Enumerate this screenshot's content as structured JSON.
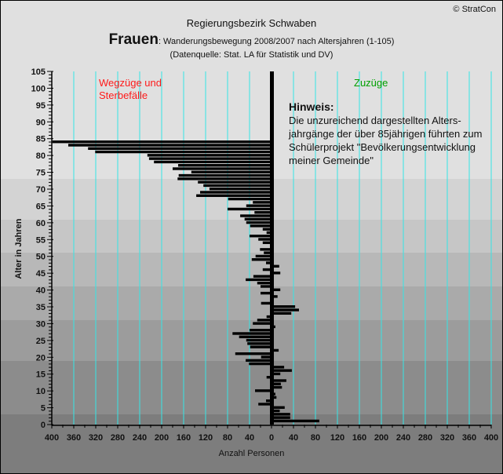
{
  "header": {
    "copyright": "© StratCon",
    "title": "Regierungsbezirk Schwaben",
    "subtitle_big": "Frauen",
    "subtitle_small": ": Wanderungsbewegung 2008/2007 nach Altersjahren (1-105)",
    "source": "(Datenquelle: Stat. LA für Statistik und DV)"
  },
  "annotations": {
    "left_label": "Wegzüge und Sterbefälle",
    "right_label": "Zuzüge",
    "note_title": "Hinweis:",
    "note_text": "Die unzureichend dargestellten Alters-jahrgänge der über 85jährigen führten zum Schülerprojekt \"Bevölkerungsentwicklung meiner Gemeinde\""
  },
  "colors": {
    "left_label": "#ff1a1a",
    "right_label": "#00a000",
    "bars": "#000000",
    "gridlines": "#33e6e6",
    "bands": [
      "#7d7d7d",
      "#8c8c8c",
      "#9c9c9c",
      "#aaaaaa",
      "#b8b8b8",
      "#c6c6c6",
      "#d3d3d3",
      "#e0e0e0"
    ]
  },
  "chart_data": {
    "type": "bar",
    "orientation": "horizontal",
    "title": "Regierungsbezirk Schwaben",
    "xlabel": "Anzahl Personen",
    "ylabel": "Alter in Jahren",
    "xlim": [
      -400,
      400
    ],
    "ylim": [
      0,
      105
    ],
    "x_ticks": [
      -400,
      -360,
      -320,
      -280,
      -240,
      -200,
      -160,
      -120,
      -80,
      -40,
      0,
      40,
      80,
      120,
      160,
      200,
      240,
      280,
      320,
      360,
      400
    ],
    "x_tick_labels": [
      "400",
      "360",
      "320",
      "280",
      "240",
      "200",
      "160",
      "120",
      "80",
      "40",
      "0",
      "40",
      "80",
      "120",
      "160",
      "200",
      "240",
      "280",
      "320",
      "360",
      "400"
    ],
    "y_ticks": [
      0,
      5,
      10,
      15,
      20,
      25,
      30,
      35,
      40,
      45,
      50,
      55,
      60,
      65,
      70,
      75,
      80,
      85,
      90,
      95,
      100,
      105
    ],
    "y_tick_labels": [
      "0",
      "5",
      "10",
      "15",
      "20",
      "25",
      "30",
      "35",
      "40",
      "45",
      "50",
      "55",
      "60",
      "65",
      "70",
      "75",
      "80",
      "85",
      "90",
      "95",
      "100",
      "105"
    ],
    "grid": "vertical",
    "age_bands": [
      0,
      3,
      19,
      31,
      41,
      51,
      61,
      73,
      105
    ],
    "ages": [
      1,
      2,
      3,
      4,
      5,
      6,
      7,
      8,
      9,
      10,
      11,
      12,
      13,
      14,
      15,
      16,
      17,
      18,
      19,
      20,
      21,
      22,
      23,
      24,
      25,
      26,
      27,
      28,
      29,
      30,
      31,
      32,
      33,
      34,
      35,
      36,
      37,
      38,
      39,
      40,
      41,
      42,
      43,
      44,
      45,
      46,
      47,
      48,
      49,
      50,
      51,
      52,
      53,
      54,
      55,
      56,
      57,
      58,
      59,
      60,
      61,
      62,
      63,
      64,
      65,
      66,
      67,
      68,
      69,
      70,
      71,
      72,
      73,
      74,
      75,
      76,
      77,
      78,
      79,
      80,
      81,
      82,
      83,
      84,
      85,
      86,
      87,
      88,
      89,
      90,
      91,
      92,
      93,
      94,
      95,
      96,
      97,
      98,
      99,
      100,
      101,
      102,
      103,
      104,
      105
    ],
    "values": [
      87,
      34,
      34,
      15,
      24,
      -24,
      -10,
      9,
      7,
      -30,
      19,
      17,
      27,
      -9,
      16,
      37,
      23,
      -41,
      -47,
      -19,
      -66,
      13,
      -39,
      -44,
      -46,
      -59,
      -71,
      -40,
      7,
      -34,
      -26,
      -9,
      36,
      50,
      43,
      -19,
      0,
      11,
      -20,
      16,
      -20,
      -26,
      -47,
      -33,
      16,
      -16,
      14,
      -10,
      -36,
      -29,
      -14,
      -21,
      0,
      -16,
      -24,
      -40,
      -9,
      -16,
      -39,
      -46,
      -49,
      -57,
      -31,
      -80,
      -46,
      -34,
      -79,
      -137,
      -130,
      -113,
      -124,
      -134,
      -171,
      -169,
      -146,
      -180,
      -170,
      -214,
      -223,
      -226,
      -321,
      -334,
      -370,
      -399,
      0,
      0,
      0,
      0,
      0,
      0,
      0,
      0,
      0,
      0,
      0,
      0,
      0,
      0,
      0,
      0,
      0,
      0,
      0,
      0,
      0
    ],
    "value_note": "negative = Wegzüge und Sterbefälle (left), positive = Zuzüge (right)"
  }
}
